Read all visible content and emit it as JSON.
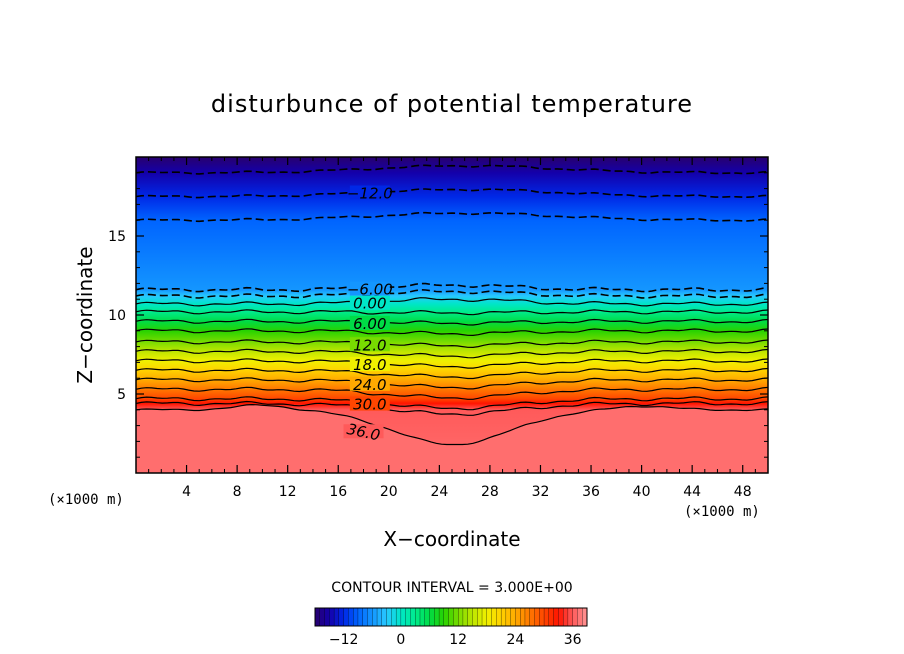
{
  "chart_data": {
    "type": "contour",
    "title": "disturbunce of potential temperature",
    "xlabel": "X−coordinate",
    "ylabel": "Z−coordinate",
    "x_unit": "(×1000 m)",
    "y_unit": "(×1000 m)",
    "xlim": [
      0,
      50
    ],
    "ylim": [
      0,
      20
    ],
    "x_ticks": [
      4,
      8,
      12,
      16,
      20,
      24,
      28,
      32,
      36,
      40,
      44,
      48
    ],
    "y_ticks": [
      5,
      10,
      15
    ],
    "contour_interval_label": "CONTOUR INTERVAL = 3.000E+00",
    "contours": [
      {
        "level": -15,
        "label": "",
        "dashed": true,
        "z": 19.0
      },
      {
        "level": -12,
        "label": "−12.0",
        "dashed": true,
        "z": 17.5
      },
      {
        "level": -9,
        "label": "",
        "dashed": true,
        "z": 16.0
      },
      {
        "level": -6,
        "label": "−6.00",
        "dashed": true,
        "z": 11.6
      },
      {
        "level": -3,
        "label": "",
        "dashed": true,
        "z": 11.2
      },
      {
        "level": 0,
        "label": "0.00",
        "dashed": false,
        "z": 10.7
      },
      {
        "level": 3,
        "label": "",
        "dashed": false,
        "z": 10.2
      },
      {
        "level": 6,
        "label": "6.00",
        "dashed": false,
        "z": 9.6
      },
      {
        "level": 9,
        "label": "",
        "dashed": false,
        "z": 9.0
      },
      {
        "level": 12,
        "label": "12.0",
        "dashed": false,
        "z": 8.3
      },
      {
        "level": 15,
        "label": "",
        "dashed": false,
        "z": 7.7
      },
      {
        "level": 18,
        "label": "18.0",
        "dashed": false,
        "z": 7.1
      },
      {
        "level": 21,
        "label": "",
        "dashed": false,
        "z": 6.5
      },
      {
        "level": 24,
        "label": "24.0",
        "dashed": false,
        "z": 5.9
      },
      {
        "level": 27,
        "label": "",
        "dashed": false,
        "z": 5.3
      },
      {
        "level": 30,
        "label": "30.0",
        "dashed": false,
        "z": 4.7
      },
      {
        "level": 33,
        "label": "",
        "dashed": false,
        "z": 4.4
      },
      {
        "level": 36,
        "label": "36.0",
        "dashed": false,
        "z": 4.0
      }
    ],
    "colorbar": {
      "min": -18,
      "max": 39,
      "ticks": [
        -12,
        0,
        12,
        24,
        36
      ],
      "tick_labels": [
        "−12",
        "0",
        "12",
        "24",
        "36"
      ]
    }
  }
}
